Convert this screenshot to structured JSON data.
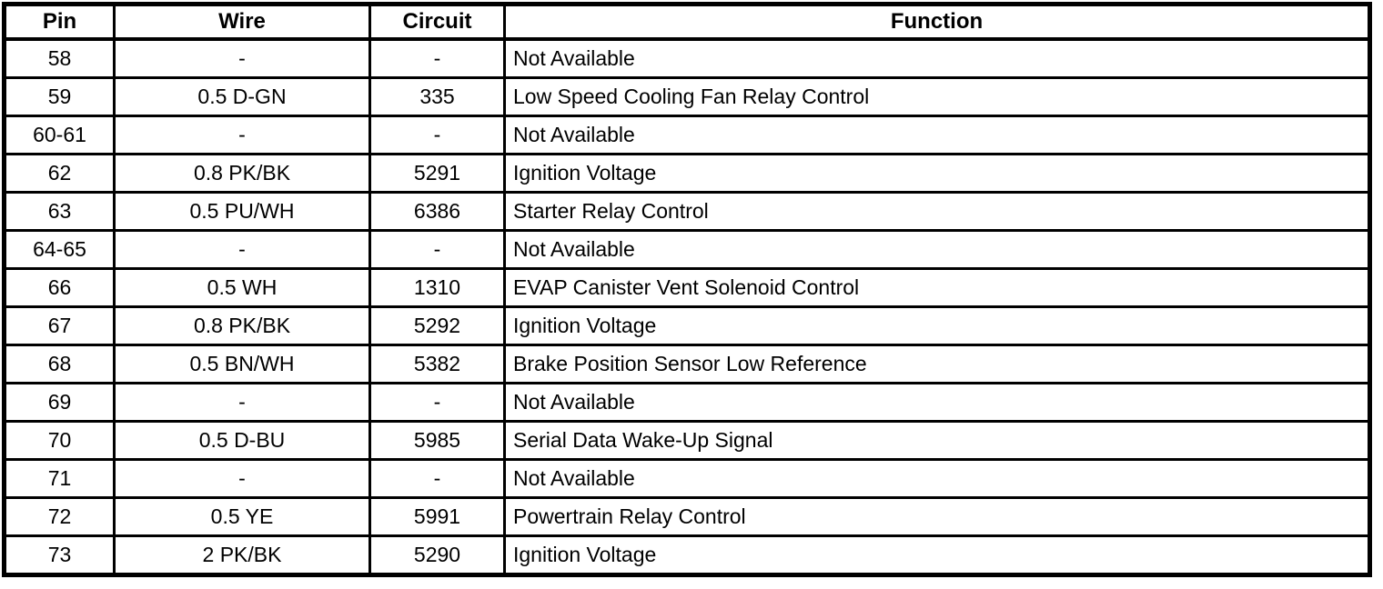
{
  "table": {
    "columns": [
      "Pin",
      "Wire",
      "Circuit",
      "Function"
    ],
    "rows": [
      {
        "pin": "58",
        "wire": "-",
        "circuit": "-",
        "function": "Not Available"
      },
      {
        "pin": "59",
        "wire": "0.5 D-GN",
        "circuit": "335",
        "function": "Low Speed Cooling Fan Relay Control"
      },
      {
        "pin": "60-61",
        "wire": "-",
        "circuit": "-",
        "function": "Not Available"
      },
      {
        "pin": "62",
        "wire": "0.8 PK/BK",
        "circuit": "5291",
        "function": "Ignition Voltage"
      },
      {
        "pin": "63",
        "wire": "0.5 PU/WH",
        "circuit": "6386",
        "function": "Starter Relay Control"
      },
      {
        "pin": "64-65",
        "wire": "-",
        "circuit": "-",
        "function": "Not Available"
      },
      {
        "pin": "66",
        "wire": "0.5 WH",
        "circuit": "1310",
        "function": "EVAP Canister Vent Solenoid Control"
      },
      {
        "pin": "67",
        "wire": "0.8 PK/BK",
        "circuit": "5292",
        "function": "Ignition Voltage"
      },
      {
        "pin": "68",
        "wire": "0.5 BN/WH",
        "circuit": "5382",
        "function": "Brake Position Sensor Low Reference"
      },
      {
        "pin": "69",
        "wire": "-",
        "circuit": "-",
        "function": "Not Available"
      },
      {
        "pin": "70",
        "wire": "0.5 D-BU",
        "circuit": "5985",
        "function": "Serial Data Wake-Up Signal"
      },
      {
        "pin": "71",
        "wire": "-",
        "circuit": "-",
        "function": "Not Available"
      },
      {
        "pin": "72",
        "wire": "0.5 YE",
        "circuit": "5991",
        "function": "Powertrain Relay Control"
      },
      {
        "pin": "73",
        "wire": "2 PK/BK",
        "circuit": "5290",
        "function": "Ignition Voltage"
      }
    ],
    "colors": {
      "border": "#000000",
      "background": "#ffffff",
      "text": "#000000"
    }
  }
}
